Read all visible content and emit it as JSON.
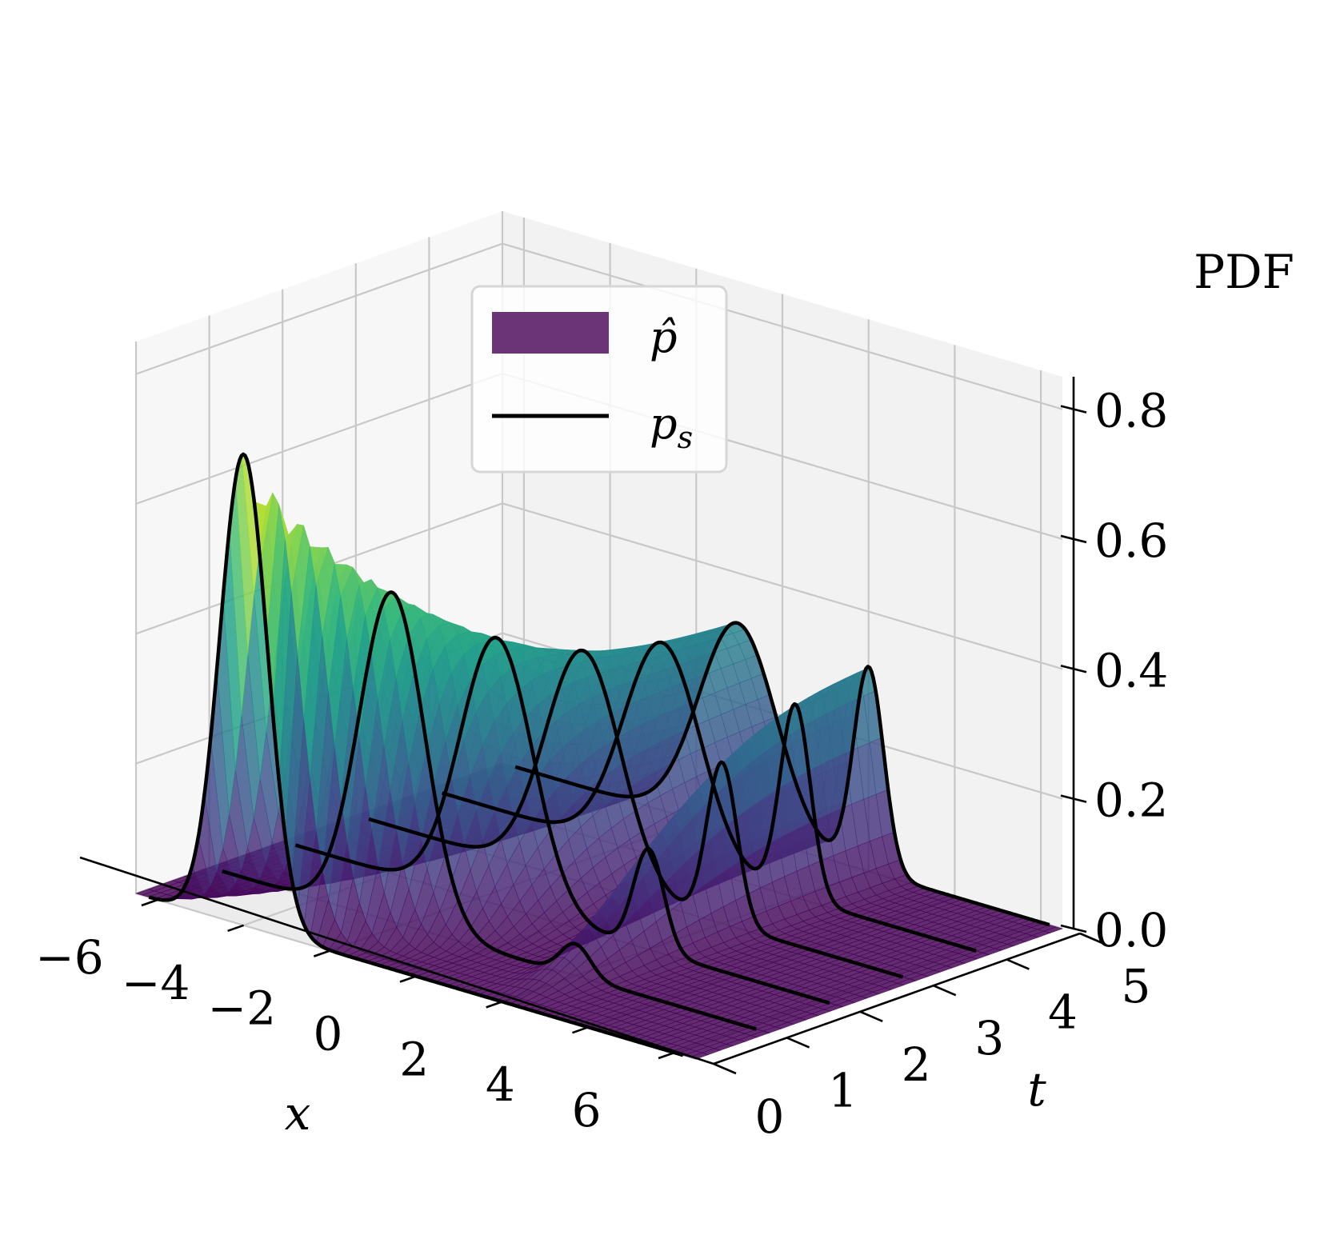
{
  "chart_data": {
    "type": "surface3d",
    "xlabel": "x",
    "ylabel": "t",
    "zlabel": "PDF",
    "x_ticks": [
      "−6",
      "−4",
      "−2",
      "0",
      "2",
      "4",
      "6"
    ],
    "t_ticks": [
      "0",
      "1",
      "2",
      "3",
      "4",
      "5"
    ],
    "z_ticks": [
      "0.0",
      "0.2",
      "0.4",
      "0.6",
      "0.8"
    ],
    "x_values": [
      -6,
      -4,
      -2,
      0,
      2,
      4,
      6
    ],
    "t_values": [
      0,
      1,
      2,
      3,
      4,
      5
    ],
    "z_values": [
      0.0,
      0.2,
      0.4,
      0.6,
      0.8
    ],
    "xlim": [
      -6.5,
      6.5
    ],
    "tlim": [
      0,
      5
    ],
    "zlim": [
      0,
      0.85
    ],
    "grid": true,
    "colormap": "viridis",
    "legend_position": "top-center",
    "legend": [
      {
        "label": "p̂",
        "kind": "patch",
        "color": "#6a3476"
      },
      {
        "label": "p",
        "sub": "s",
        "kind": "line",
        "color": "#000000"
      }
    ],
    "surface": {
      "name": "p̂",
      "description_params": {
        "initial_mean": -4.0,
        "initial_sd": 0.55,
        "final_modes": [
          {
            "mean": -1.0,
            "sd": 0.9,
            "weight": 0.4
          },
          {
            "mean": 2.0,
            "sd": 0.35,
            "weight": 0.28
          }
        ]
      }
    },
    "slices_t": [
      0,
      1,
      2,
      3,
      4,
      5
    ],
    "slice_peaks": [
      {
        "t": 0,
        "x_peak": -4.0,
        "pdf_peak": 0.72
      },
      {
        "t": 1,
        "x_peak": -3.0,
        "pdf_peak": 0.62
      },
      {
        "t": 2,
        "x_peak": -2.2,
        "pdf_peak": 0.52
      },
      {
        "t": 3,
        "x_peak": -1.6,
        "pdf_peak": 0.45
      },
      {
        "t": 4,
        "x_peak": -1.2,
        "pdf_peak": 0.41
      },
      {
        "t": 5,
        "x_peak": -1.0,
        "pdf_peak": 0.4
      }
    ],
    "final_second_peak": {
      "t": 5,
      "x": 2.0,
      "pdf": 0.29
    }
  }
}
